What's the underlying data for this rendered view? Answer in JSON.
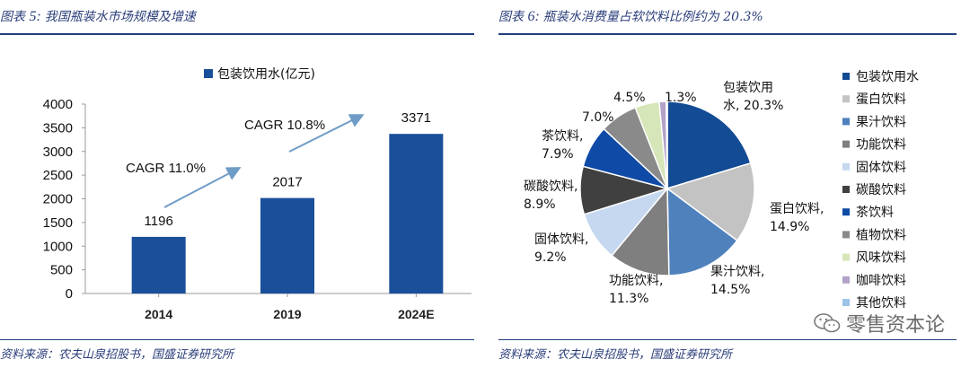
{
  "figures": [
    {
      "title_prefix": "图表 ",
      "title_num": "5: ",
      "title_text": "我国瓶装水市场规模及增速",
      "source": "资料来源：农夫山泉招股书，国盛证券研究所"
    },
    {
      "title_prefix": "图表 ",
      "title_num": "6: ",
      "title_text": "瓶装水消费量占软饮料比例约为 20.3%",
      "source": "资料来源：农夫山泉招股书，国盛证券研究所"
    }
  ],
  "watermark": "零售资本论",
  "colors": {
    "title": "#2a3d7a",
    "rule": "#1f3e7c",
    "bar": "#1a4f9a",
    "arrow": "#6f9cc7"
  },
  "chart_data": [
    {
      "type": "bar",
      "title": "",
      "legend": "包装饮用水(亿元)",
      "legend_position": "top",
      "categories": [
        "2014",
        "2019",
        "2024E"
      ],
      "values": [
        1196,
        2017,
        3371
      ],
      "data_labels": [
        "1196",
        "2017",
        "3371"
      ],
      "ylim": [
        0,
        4000
      ],
      "yticks": [
        0,
        500,
        1000,
        1500,
        2000,
        2500,
        3000,
        3500,
        4000
      ],
      "xlabel": "",
      "ylabel": "",
      "grid": false,
      "annotations": [
        {
          "text": "CAGR 11.0%",
          "from": "2014",
          "to": "2019"
        },
        {
          "text": "CAGR 10.8%",
          "from": "2019",
          "to": "2024E"
        }
      ]
    },
    {
      "type": "pie",
      "title": "",
      "legend_position": "right",
      "slices": [
        {
          "label": "包装饮用水",
          "value": 20.3,
          "display": "包装饮用\n水, 20.3%",
          "color": "#134b94"
        },
        {
          "label": "蛋白饮料",
          "value": 14.9,
          "display": "蛋白饮料,\n14.9%",
          "color": "#c3c3c3"
        },
        {
          "label": "果汁饮料",
          "value": 14.5,
          "display": "果汁饮料,\n14.5%",
          "color": "#4f81bd"
        },
        {
          "label": "功能饮料",
          "value": 11.3,
          "display": "功能饮料,\n11.3%",
          "color": "#7f7f7f"
        },
        {
          "label": "固体饮料",
          "value": 9.2,
          "display": "固体饮料,\n9.2%",
          "color": "#c5d8ef"
        },
        {
          "label": "碳酸饮料",
          "value": 8.9,
          "display": "碳酸饮料,\n8.9%",
          "color": "#404040"
        },
        {
          "label": "茶饮料",
          "value": 7.9,
          "display": "茶饮料,\n7.9%",
          "color": "#0f4aa6"
        },
        {
          "label": "植物饮料",
          "value": 7.0,
          "display": "7.0%",
          "color": "#8a8a8a"
        },
        {
          "label": "风味饮料",
          "value": 4.5,
          "display": "4.5%",
          "color": "#d6e6b8"
        },
        {
          "label": "咖啡饮料",
          "value": 1.3,
          "display": "1.3%",
          "color": "#b3a2c7"
        },
        {
          "label": "其他饮料",
          "value": 0.2,
          "display": "",
          "color": "#9dc3e6"
        }
      ]
    }
  ]
}
